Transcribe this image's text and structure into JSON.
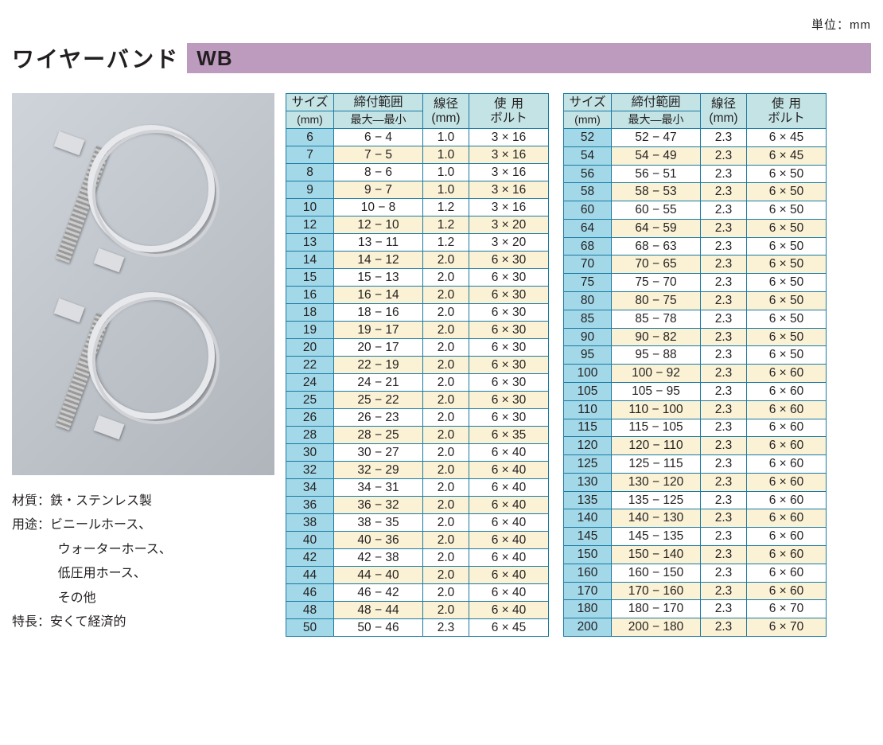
{
  "unit_label": "単位：mm",
  "title": "ワイヤーバンド",
  "code": "WB",
  "info": {
    "material_label": "材質：",
    "material_value": "鉄・ステンレス製",
    "use_label": "用途：",
    "use_lines": [
      "ビニールホース、",
      "ウォーターホース、",
      "低圧用ホース、",
      "その他"
    ],
    "feature_label": "特長：",
    "feature_value": "安くて経済的"
  },
  "header_colors": {
    "bar_bg": "#bd9bbf",
    "thead_bg": "#c3e3e5",
    "size_bg": "#a2d8e8",
    "alt_bg": "#fbf2d5",
    "border": "#1a7aa3"
  },
  "columns": {
    "size": "サイズ",
    "size_unit": "(mm)",
    "range": "締付範囲",
    "range_sub": "最大—最小",
    "wire": "線径",
    "wire_unit": "(mm)",
    "bolt_a": "使",
    "bolt_b": "用",
    "bolt_sub": "ボルト"
  },
  "table1": [
    {
      "size": "6",
      "range": "6 − 4",
      "wire": "1.0",
      "bolt": "3 × 16"
    },
    {
      "size": "7",
      "range": "7 − 5",
      "wire": "1.0",
      "bolt": "3 × 16"
    },
    {
      "size": "8",
      "range": "8 − 6",
      "wire": "1.0",
      "bolt": "3 × 16"
    },
    {
      "size": "9",
      "range": "9 − 7",
      "wire": "1.0",
      "bolt": "3 × 16"
    },
    {
      "size": "10",
      "range": "10 − 8",
      "wire": "1.2",
      "bolt": "3 × 16"
    },
    {
      "size": "12",
      "range": "12 − 10",
      "wire": "1.2",
      "bolt": "3 × 20"
    },
    {
      "size": "13",
      "range": "13 − 11",
      "wire": "1.2",
      "bolt": "3 × 20"
    },
    {
      "size": "14",
      "range": "14 − 12",
      "wire": "2.0",
      "bolt": "6 × 30"
    },
    {
      "size": "15",
      "range": "15 − 13",
      "wire": "2.0",
      "bolt": "6 × 30"
    },
    {
      "size": "16",
      "range": "16 − 14",
      "wire": "2.0",
      "bolt": "6 × 30"
    },
    {
      "size": "18",
      "range": "18 − 16",
      "wire": "2.0",
      "bolt": "6 × 30"
    },
    {
      "size": "19",
      "range": "19 − 17",
      "wire": "2.0",
      "bolt": "6 × 30"
    },
    {
      "size": "20",
      "range": "20 − 17",
      "wire": "2.0",
      "bolt": "6 × 30"
    },
    {
      "size": "22",
      "range": "22 − 19",
      "wire": "2.0",
      "bolt": "6 × 30"
    },
    {
      "size": "24",
      "range": "24 − 21",
      "wire": "2.0",
      "bolt": "6 × 30"
    },
    {
      "size": "25",
      "range": "25 − 22",
      "wire": "2.0",
      "bolt": "6 × 30"
    },
    {
      "size": "26",
      "range": "26 − 23",
      "wire": "2.0",
      "bolt": "6 × 30"
    },
    {
      "size": "28",
      "range": "28 − 25",
      "wire": "2.0",
      "bolt": "6 × 35"
    },
    {
      "size": "30",
      "range": "30 − 27",
      "wire": "2.0",
      "bolt": "6 × 40"
    },
    {
      "size": "32",
      "range": "32 − 29",
      "wire": "2.0",
      "bolt": "6 × 40"
    },
    {
      "size": "34",
      "range": "34 − 31",
      "wire": "2.0",
      "bolt": "6 × 40"
    },
    {
      "size": "36",
      "range": "36 − 32",
      "wire": "2.0",
      "bolt": "6 × 40"
    },
    {
      "size": "38",
      "range": "38 − 35",
      "wire": "2.0",
      "bolt": "6 × 40"
    },
    {
      "size": "40",
      "range": "40 − 36",
      "wire": "2.0",
      "bolt": "6 × 40"
    },
    {
      "size": "42",
      "range": "42 − 38",
      "wire": "2.0",
      "bolt": "6 × 40"
    },
    {
      "size": "44",
      "range": "44 − 40",
      "wire": "2.0",
      "bolt": "6 × 40"
    },
    {
      "size": "46",
      "range": "46 − 42",
      "wire": "2.0",
      "bolt": "6 × 40"
    },
    {
      "size": "48",
      "range": "48 − 44",
      "wire": "2.0",
      "bolt": "6 × 40"
    },
    {
      "size": "50",
      "range": "50 − 46",
      "wire": "2.3",
      "bolt": "6 × 45"
    }
  ],
  "table2": [
    {
      "size": "52",
      "range": "52 − 47",
      "wire": "2.3",
      "bolt": "6 × 45"
    },
    {
      "size": "54",
      "range": "54 − 49",
      "wire": "2.3",
      "bolt": "6 × 45"
    },
    {
      "size": "56",
      "range": "56 − 51",
      "wire": "2.3",
      "bolt": "6 × 50"
    },
    {
      "size": "58",
      "range": "58 − 53",
      "wire": "2.3",
      "bolt": "6 × 50"
    },
    {
      "size": "60",
      "range": "60 − 55",
      "wire": "2.3",
      "bolt": "6 × 50"
    },
    {
      "size": "64",
      "range": "64 − 59",
      "wire": "2.3",
      "bolt": "6 × 50"
    },
    {
      "size": "68",
      "range": "68 − 63",
      "wire": "2.3",
      "bolt": "6 × 50"
    },
    {
      "size": "70",
      "range": "70 − 65",
      "wire": "2.3",
      "bolt": "6 × 50"
    },
    {
      "size": "75",
      "range": "75 − 70",
      "wire": "2.3",
      "bolt": "6 × 50"
    },
    {
      "size": "80",
      "range": "80 − 75",
      "wire": "2.3",
      "bolt": "6 × 50"
    },
    {
      "size": "85",
      "range": "85 − 78",
      "wire": "2.3",
      "bolt": "6 × 50"
    },
    {
      "size": "90",
      "range": "90 − 82",
      "wire": "2.3",
      "bolt": "6 × 50"
    },
    {
      "size": "95",
      "range": "95 − 88",
      "wire": "2.3",
      "bolt": "6 × 50"
    },
    {
      "size": "100",
      "range": "100 − 92",
      "wire": "2.3",
      "bolt": "6 × 60"
    },
    {
      "size": "105",
      "range": "105 − 95",
      "wire": "2.3",
      "bolt": "6 × 60"
    },
    {
      "size": "110",
      "range": "110 − 100",
      "wire": "2.3",
      "bolt": "6 × 60"
    },
    {
      "size": "115",
      "range": "115 − 105",
      "wire": "2.3",
      "bolt": "6 × 60"
    },
    {
      "size": "120",
      "range": "120 − 110",
      "wire": "2.3",
      "bolt": "6 × 60"
    },
    {
      "size": "125",
      "range": "125 − 115",
      "wire": "2.3",
      "bolt": "6 × 60"
    },
    {
      "size": "130",
      "range": "130 − 120",
      "wire": "2.3",
      "bolt": "6 × 60"
    },
    {
      "size": "135",
      "range": "135 − 125",
      "wire": "2.3",
      "bolt": "6 × 60"
    },
    {
      "size": "140",
      "range": "140 − 130",
      "wire": "2.3",
      "bolt": "6 × 60"
    },
    {
      "size": "145",
      "range": "145 − 135",
      "wire": "2.3",
      "bolt": "6 × 60"
    },
    {
      "size": "150",
      "range": "150 − 140",
      "wire": "2.3",
      "bolt": "6 × 60"
    },
    {
      "size": "160",
      "range": "160 − 150",
      "wire": "2.3",
      "bolt": "6 × 60"
    },
    {
      "size": "170",
      "range": "170 − 160",
      "wire": "2.3",
      "bolt": "6 × 60"
    },
    {
      "size": "180",
      "range": "180 − 170",
      "wire": "2.3",
      "bolt": "6 × 70"
    },
    {
      "size": "200",
      "range": "200 − 180",
      "wire": "2.3",
      "bolt": "6 × 70"
    }
  ]
}
